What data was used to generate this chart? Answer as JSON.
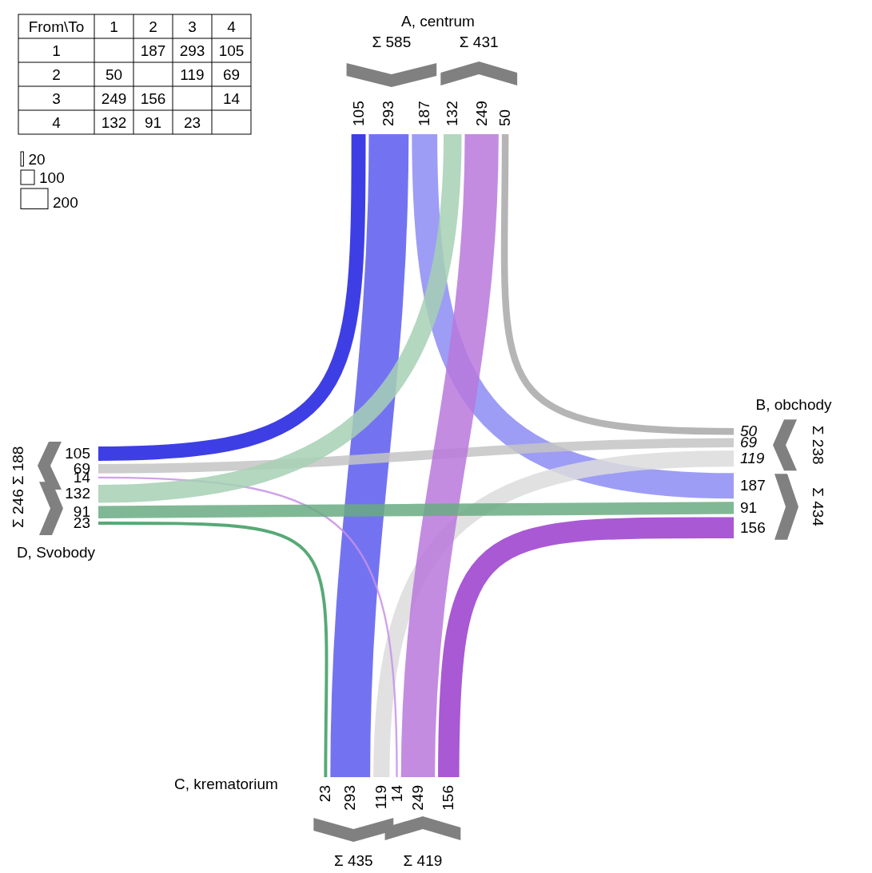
{
  "chart_data": [
    {
      "type": "heatmap",
      "legend_title": "From\\To",
      "categories": [
        "1",
        "2",
        "3",
        "4"
      ],
      "y_categories": [
        "1",
        "2",
        "3",
        "4"
      ],
      "cells": [
        [
          null,
          187,
          293,
          105
        ],
        [
          50,
          null,
          119,
          69
        ],
        [
          249,
          156,
          null,
          14
        ],
        [
          132,
          91,
          23,
          null
        ]
      ],
      "data_labels": true
    },
    {
      "type": "other",
      "categories": [
        "A, centrum",
        "B, obchody",
        "C, krematorium",
        "D, Svobody"
      ],
      "series": [
        {
          "values": [
            null,
            187,
            293,
            105
          ],
          "colors": [
            null,
            "#8c8cf5",
            "#5a5aef",
            "#1c1ce0"
          ]
        },
        {
          "values": [
            50,
            null,
            119,
            69
          ],
          "colors": [
            "#a8a8a8",
            null,
            "#dcdcdc",
            "#c4c4c4"
          ]
        },
        {
          "values": [
            249,
            156,
            null,
            14
          ],
          "colors": [
            "#b878dc",
            "#9a3ccc",
            null,
            "#c890e8"
          ]
        },
        {
          "values": [
            132,
            91,
            23,
            null
          ],
          "colors": [
            "#a6d0b4",
            "#6aac82",
            "#3a9a5e",
            null
          ]
        },
        {
          "values": [
            null,
            50,
            249,
            132
          ]
        },
        {
          "values": [
            187,
            null,
            156,
            91
          ]
        },
        {
          "values": [
            293,
            119,
            null,
            23
          ]
        },
        {
          "values": [
            105,
            69,
            14,
            null
          ]
        }
      ],
      "totals": [
        "Σ 585",
        "Σ 431",
        "Σ 238",
        "Σ 434",
        "Σ 419",
        "Σ 435",
        "Σ 246",
        "Σ 188"
      ],
      "data_labels": true,
      "annotations": [
        "20",
        "100",
        "200"
      ]
    }
  ]
}
